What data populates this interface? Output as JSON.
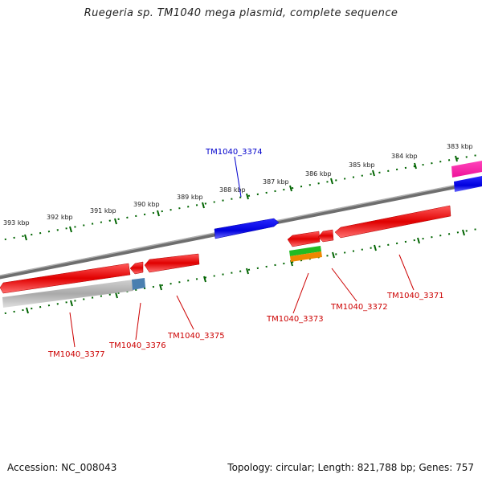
{
  "title": "Ruegeria sp. TM1040 mega plasmid, complete sequence",
  "accession_label": "Accession: NC_008043",
  "summary": "Topology: circular; Length: 821,788 bp; Genes: 757",
  "ticks": [
    "383 kbp",
    "384 kbp",
    "385 kbp",
    "386 kbp",
    "387 kbp",
    "388 kbp",
    "389 kbp",
    "390 kbp",
    "391 kbp",
    "392 kbp",
    "393 kbp"
  ],
  "genes": {
    "g3374": "TM1040_3374",
    "g3377": "TM1040_3377",
    "g3376": "TM1040_3376",
    "g3375": "TM1040_3375",
    "g3373": "TM1040_3373",
    "g3372": "TM1040_3372",
    "g3371": "TM1040_3371"
  },
  "colors": {
    "cds": "#e00000",
    "highlight": "#0000dd",
    "backbone": "#808080",
    "tick": "#006400",
    "pink": "#ee1199",
    "green": "#22bb22",
    "orange": "#ee8800",
    "steel": "#4a7fb0"
  }
}
